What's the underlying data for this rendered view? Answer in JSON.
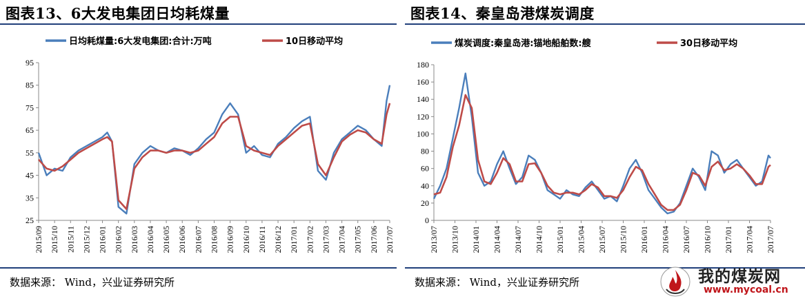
{
  "left": {
    "title": "图表13、6大发电集团日均耗煤量",
    "source": "数据来源： Wind，兴业证券研究所"
  },
  "right": {
    "title": "图表14、秦皇岛港煤炭调度",
    "source": "数据来源： Wind，兴业证券研究所"
  },
  "watermark": {
    "name": "我的煤炭网",
    "url": "www.mycoal.cn",
    "logo_icon": "flame-logo-icon"
  },
  "colors": {
    "series_main": "#4a7ebb",
    "series_ma": "#be4b48",
    "rule": "#1f3f7a"
  },
  "chart_data": [
    {
      "type": "line",
      "title": "图表13、6大发电集团日均耗煤量",
      "ylim": [
        25,
        95
      ],
      "yticks": [
        25,
        35,
        45,
        55,
        65,
        75,
        85,
        95
      ],
      "x_tick_labels": [
        "2015/09",
        "2015/10",
        "2015/11",
        "2015/12",
        "2016/01",
        "2016/02",
        "2016/03",
        "2016/04",
        "2016/05",
        "2016/06",
        "2016/07",
        "2016/08",
        "2016/09",
        "2016/10",
        "2016/11",
        "2016/12",
        "2017/01",
        "2017/02",
        "2017/03",
        "2017/04",
        "2017/05",
        "2017/06",
        "2017/07"
      ],
      "legend_position": "top",
      "grid": false,
      "series": [
        {
          "name": "日均耗煤量:6大发电集团:合计:万吨",
          "color": "#4a7ebb",
          "x": [
            0,
            0.5,
            1,
            1.5,
            2,
            2.5,
            3,
            3.5,
            4,
            4.3,
            4.6,
            5,
            5.5,
            6,
            6.5,
            7,
            7.5,
            8,
            8.5,
            9,
            9.5,
            10,
            10.5,
            11,
            11.5,
            12,
            12.5,
            13,
            13.5,
            14,
            14.5,
            15,
            15.5,
            16,
            16.5,
            17,
            17.5,
            18,
            18.5,
            19,
            19.5,
            20,
            20.5,
            21,
            21.5,
            21.8,
            22
          ],
          "values": [
            55,
            45,
            48,
            47,
            53,
            56,
            58,
            60,
            62,
            64,
            60,
            31,
            28,
            50,
            55,
            58,
            56,
            55,
            57,
            56,
            54,
            57,
            61,
            64,
            72,
            77,
            72,
            55,
            58,
            54,
            53,
            59,
            62,
            66,
            69,
            71,
            47,
            43,
            55,
            61,
            64,
            67,
            65,
            61,
            58,
            78,
            85
          ]
        },
        {
          "name": "10日移动平均",
          "color": "#be4b48",
          "x": [
            0,
            0.5,
            1,
            1.5,
            2,
            2.5,
            3,
            3.5,
            4,
            4.3,
            4.6,
            5,
            5.5,
            6,
            6.5,
            7,
            7.5,
            8,
            8.5,
            9,
            9.5,
            10,
            10.5,
            11,
            11.5,
            12,
            12.5,
            13,
            13.5,
            14,
            14.5,
            15,
            15.5,
            16,
            16.5,
            17,
            17.5,
            18,
            18.5,
            19,
            19.5,
            20,
            20.5,
            21,
            21.5,
            21.8,
            22
          ],
          "values": [
            52,
            48,
            47,
            49,
            52,
            55,
            57,
            59,
            61,
            62,
            60,
            34,
            30,
            48,
            53,
            56,
            56,
            55,
            56,
            56,
            55,
            56,
            59,
            62,
            68,
            71,
            71,
            58,
            56,
            55,
            54,
            58,
            61,
            64,
            67,
            68,
            50,
            45,
            53,
            60,
            63,
            65,
            64,
            61,
            59,
            72,
            77
          ]
        }
      ]
    },
    {
      "type": "line",
      "title": "图表14、秦皇岛港煤炭调度",
      "ylim": [
        0,
        180
      ],
      "yticks": [
        0,
        20,
        40,
        60,
        80,
        100,
        120,
        140,
        160,
        180
      ],
      "x_tick_labels": [
        "2013/07",
        "2013/10",
        "2014/01",
        "2014/04",
        "2014/07",
        "2014/10",
        "2015/01",
        "2015/04",
        "2015/07",
        "2015/10",
        "2016/01",
        "2016/04",
        "2016/07",
        "2016/10",
        "2017/01",
        "2017/04",
        "2017/07"
      ],
      "legend_position": "top",
      "grid": false,
      "series": [
        {
          "name": "煤炭调度:秦皇岛港:锚地船舶数:艘",
          "color": "#4a7ebb",
          "x": [
            0,
            0.3,
            0.6,
            0.9,
            1.2,
            1.5,
            1.8,
            2.1,
            2.4,
            2.7,
            3,
            3.3,
            3.6,
            3.9,
            4.2,
            4.5,
            4.8,
            5.1,
            5.4,
            5.7,
            6,
            6.3,
            6.6,
            6.9,
            7.2,
            7.5,
            7.8,
            8.1,
            8.4,
            8.7,
            9,
            9.3,
            9.6,
            9.9,
            10.2,
            10.5,
            10.8,
            11.1,
            11.4,
            11.7,
            12,
            12.3,
            12.6,
            12.9,
            13.2,
            13.5,
            13.8,
            14.1,
            14.4,
            14.7,
            15,
            15.3,
            15.6,
            15.9,
            16
          ],
          "values": [
            25,
            40,
            60,
            95,
            130,
            170,
            120,
            55,
            40,
            45,
            65,
            80,
            60,
            42,
            50,
            75,
            70,
            55,
            35,
            30,
            25,
            35,
            30,
            28,
            38,
            45,
            35,
            25,
            28,
            22,
            40,
            60,
            70,
            55,
            35,
            25,
            15,
            8,
            10,
            20,
            40,
            60,
            50,
            35,
            80,
            75,
            55,
            65,
            70,
            60,
            50,
            40,
            45,
            75,
            72
          ]
        },
        {
          "name": "30日移动平均",
          "color": "#be4b48",
          "x": [
            0,
            0.3,
            0.6,
            0.9,
            1.2,
            1.5,
            1.8,
            2.1,
            2.4,
            2.7,
            3,
            3.3,
            3.6,
            3.9,
            4.2,
            4.5,
            4.8,
            5.1,
            5.4,
            5.7,
            6,
            6.3,
            6.6,
            6.9,
            7.2,
            7.5,
            7.8,
            8.1,
            8.4,
            8.7,
            9,
            9.3,
            9.6,
            9.9,
            10.2,
            10.5,
            10.8,
            11.1,
            11.4,
            11.7,
            12,
            12.3,
            12.6,
            12.9,
            13.2,
            13.5,
            13.8,
            14.1,
            14.4,
            14.7,
            15,
            15.3,
            15.6,
            15.9,
            16
          ],
          "values": [
            30,
            32,
            50,
            85,
            110,
            145,
            130,
            70,
            45,
            42,
            55,
            72,
            65,
            45,
            45,
            65,
            66,
            55,
            40,
            32,
            30,
            32,
            32,
            30,
            35,
            42,
            38,
            28,
            28,
            26,
            35,
            50,
            62,
            58,
            42,
            30,
            18,
            12,
            12,
            18,
            35,
            55,
            52,
            40,
            62,
            68,
            58,
            60,
            65,
            60,
            52,
            42,
            42,
            62,
            64
          ]
        }
      ]
    }
  ]
}
